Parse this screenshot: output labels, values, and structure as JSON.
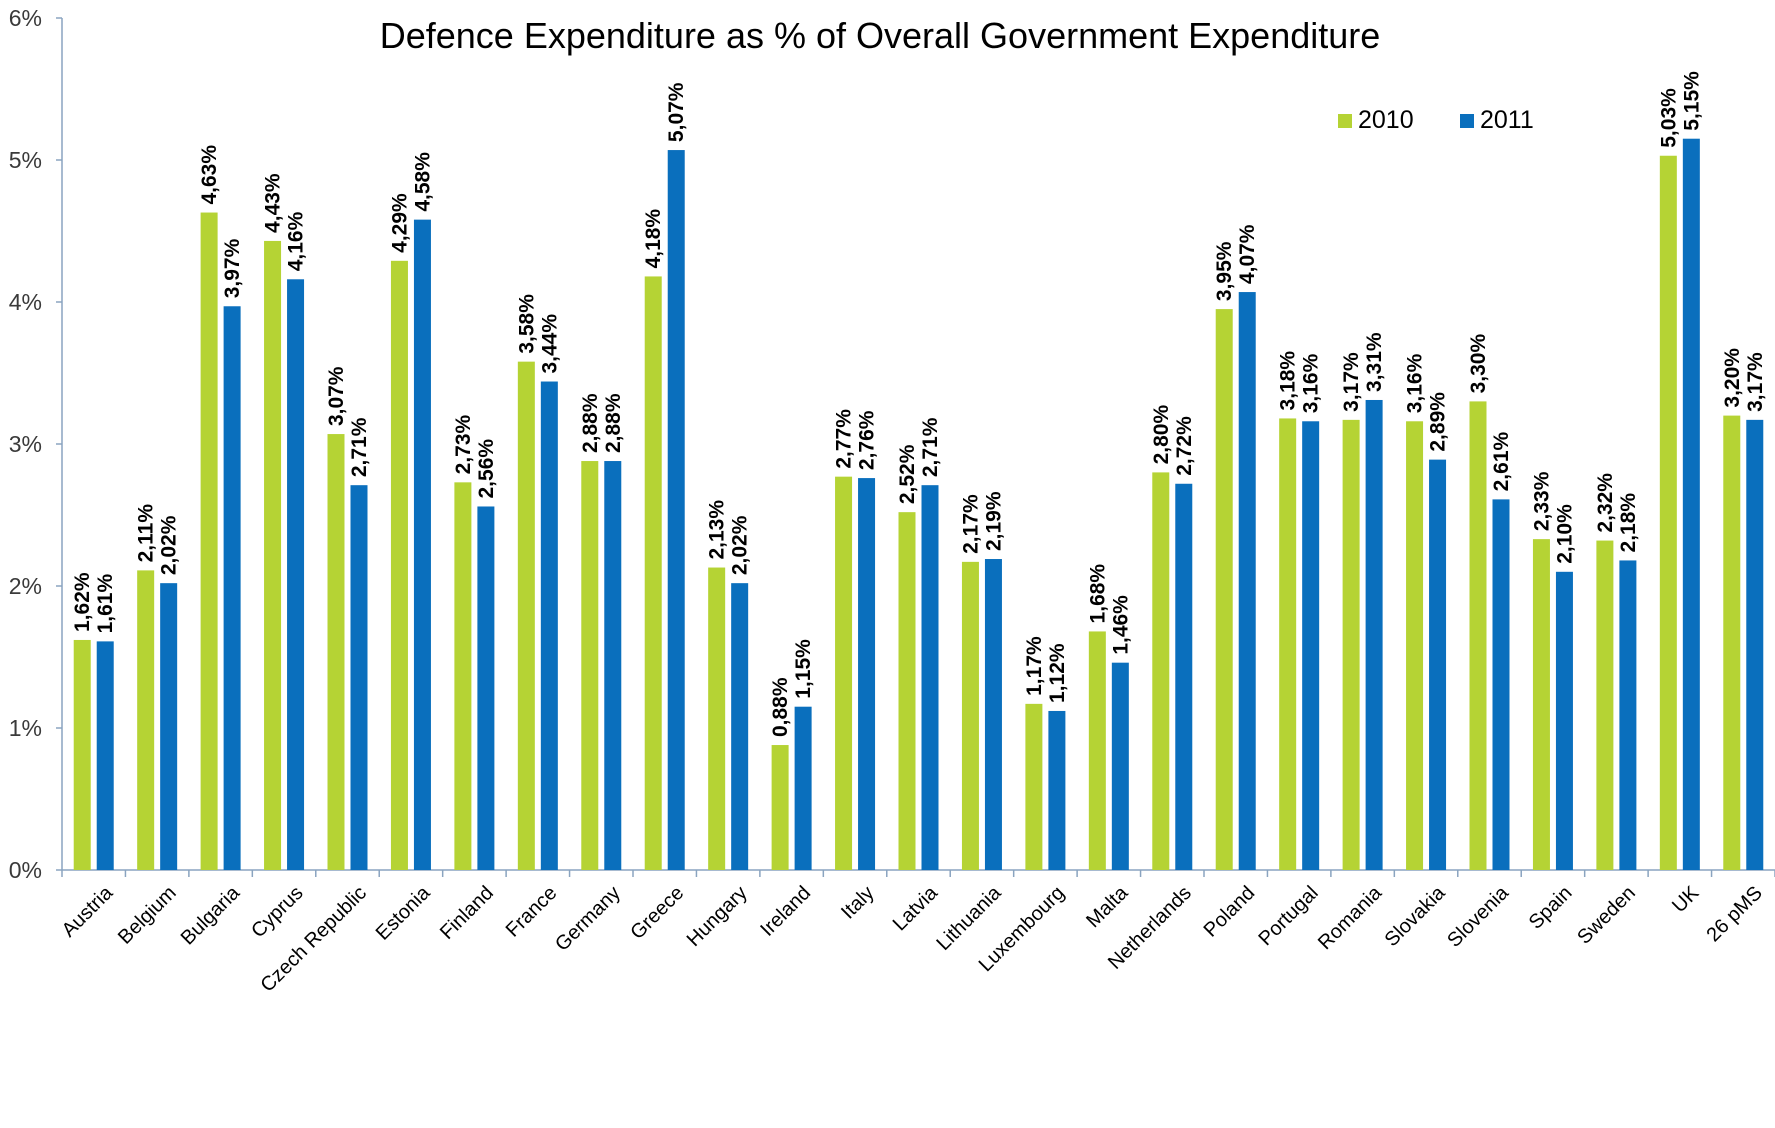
{
  "chart_data": {
    "type": "bar",
    "title": "Defence Expenditure as % of Overall Government Expenditure",
    "xlabel": "",
    "ylabel": "",
    "ylim": [
      0,
      6
    ],
    "yticks": [
      "0%",
      "1%",
      "2%",
      "3%",
      "4%",
      "5%",
      "6%"
    ],
    "grid": false,
    "legend": {
      "placement": "top-right",
      "entries": [
        "2010",
        "2011"
      ]
    },
    "categories": [
      "Austria",
      "Belgium",
      "Bulgaria",
      "Cyprus",
      "Czech Republic",
      "Estonia",
      "Finland",
      "France",
      "Germany",
      "Greece",
      "Hungary",
      "Ireland",
      "Italy",
      "Latvia",
      "Lithuania",
      "Luxembourg",
      "Malta",
      "Netherlands",
      "Poland",
      "Portugal",
      "Romania",
      "Slovakia",
      "Slovenia",
      "Spain",
      "Sweden",
      "UK",
      "26 pMS"
    ],
    "series": [
      {
        "name": "2010",
        "color": "#b5d334",
        "values": [
          1.62,
          2.11,
          4.63,
          4.43,
          3.07,
          4.29,
          2.73,
          3.58,
          2.88,
          4.18,
          2.13,
          0.88,
          2.77,
          2.52,
          2.17,
          1.17,
          1.68,
          2.8,
          3.95,
          3.18,
          3.17,
          3.16,
          3.3,
          2.33,
          2.32,
          5.03,
          3.2
        ],
        "labels": [
          "1,62%",
          "2,11%",
          "4,63%",
          "4,43%",
          "3,07%",
          "4,29%",
          "2,73%",
          "3,58%",
          "2,88%",
          "4,18%",
          "2,13%",
          "0,88%",
          "2,77%",
          "2,52%",
          "2,17%",
          "1,17%",
          "1,68%",
          "2,80%",
          "3,95%",
          "3,18%",
          "3,17%",
          "3,16%",
          "3,30%",
          "2,33%",
          "2,32%",
          "5,03%",
          "3,20%"
        ]
      },
      {
        "name": "2011",
        "color": "#0a6fbd",
        "values": [
          1.61,
          2.02,
          3.97,
          4.16,
          2.71,
          4.58,
          2.56,
          3.44,
          2.88,
          5.07,
          2.02,
          1.15,
          2.76,
          2.71,
          2.19,
          1.12,
          1.46,
          2.72,
          4.07,
          3.16,
          3.31,
          2.89,
          2.61,
          2.1,
          2.18,
          5.15,
          3.17
        ],
        "labels": [
          "1,61%",
          "2,02%",
          "3,97%",
          "4,16%",
          "2,71%",
          "4,58%",
          "2,56%",
          "3,44%",
          "2,88%",
          "5,07%",
          "2,02%",
          "1,15%",
          "2,76%",
          "2,71%",
          "2,19%",
          "1,12%",
          "1,46%",
          "2,72%",
          "4,07%",
          "3,16%",
          "3,31%",
          "2,89%",
          "2,61%",
          "2,10%",
          "2,18%",
          "5,15%",
          "3,17%"
        ]
      }
    ]
  }
}
